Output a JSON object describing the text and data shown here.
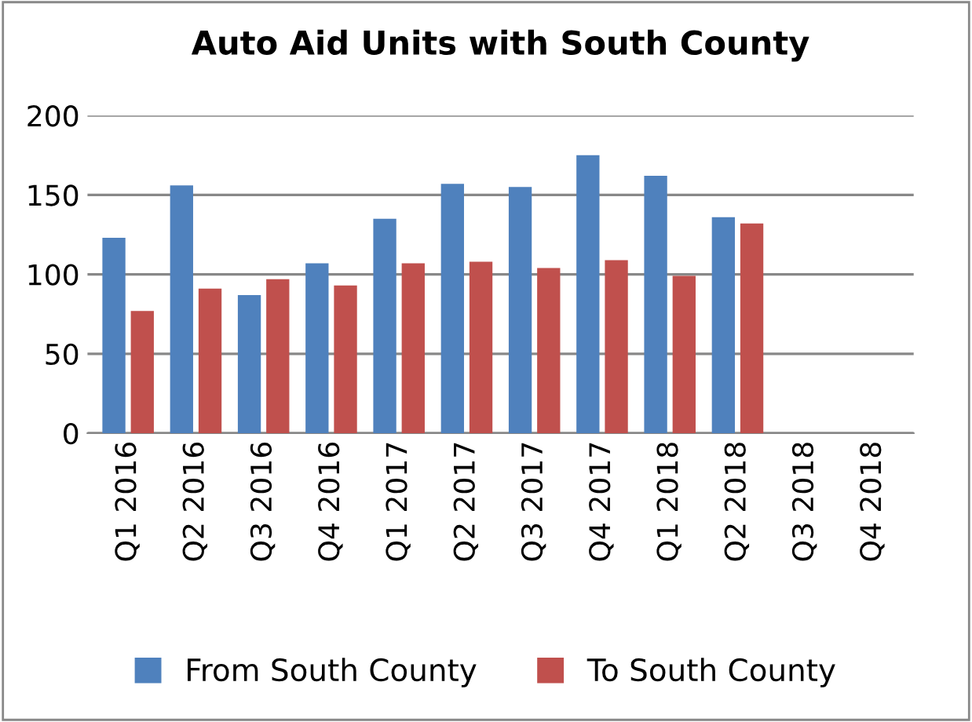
{
  "chart_data": {
    "type": "bar",
    "title": "Auto Aid Units with South County",
    "categories": [
      "Q1 2016",
      "Q2 2016",
      "Q3 2016",
      "Q4 2016",
      "Q1 2017",
      "Q2 2017",
      "Q3 2017",
      "Q4 2017",
      "Q1 2018",
      "Q2 2018",
      "Q3 2018",
      "Q4 2018"
    ],
    "series": [
      {
        "name": "From South County",
        "color": "#4f81bd",
        "values": [
          123,
          156,
          87,
          107,
          135,
          157,
          155,
          175,
          162,
          136,
          null,
          null
        ]
      },
      {
        "name": "To South County",
        "color": "#c0504d",
        "values": [
          77,
          91,
          97,
          93,
          107,
          108,
          104,
          109,
          99,
          132,
          null,
          null
        ]
      }
    ],
    "ylim": [
      0,
      200
    ],
    "yticks": [
      0,
      50,
      100,
      150,
      200
    ],
    "grid": "y",
    "legend": "bottom"
  }
}
